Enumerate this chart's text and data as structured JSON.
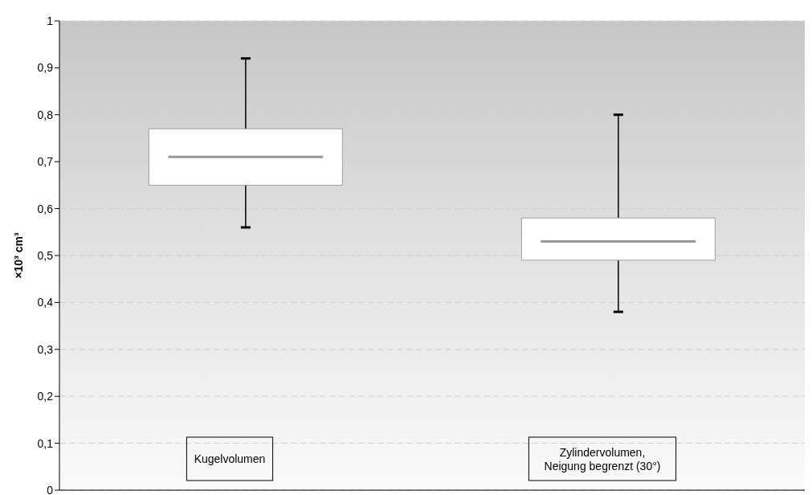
{
  "chart_data": {
    "type": "box",
    "ylabel": "×10³ cm³",
    "categories": [
      "Kugelvolumen",
      "Zylindervolumen,\nNeigung begrenzt (30°)"
    ],
    "boxes": [
      {
        "low": 0.56,
        "q1": 0.65,
        "median": 0.71,
        "q3": 0.77,
        "high": 0.92
      },
      {
        "low": 0.38,
        "q1": 0.49,
        "median": 0.53,
        "q3": 0.58,
        "high": 0.8
      }
    ],
    "ylim": [
      0,
      1
    ],
    "yticks": [
      0,
      {
        "value": 0.1,
        "label": "0,1"
      },
      {
        "value": 0.2,
        "label": "0,2"
      },
      {
        "value": 0.3,
        "label": "0,3"
      },
      {
        "value": 0.4,
        "label": "0,4"
      },
      {
        "value": 0.5,
        "label": "0,5"
      },
      {
        "value": 0.6,
        "label": "0,6"
      },
      {
        "value": 0.7,
        "label": "0,7"
      },
      {
        "value": 0.8,
        "label": "0,8"
      },
      {
        "value": 0.9,
        "label": "0,9"
      },
      1
    ],
    "grid": "y",
    "legend": false
  }
}
